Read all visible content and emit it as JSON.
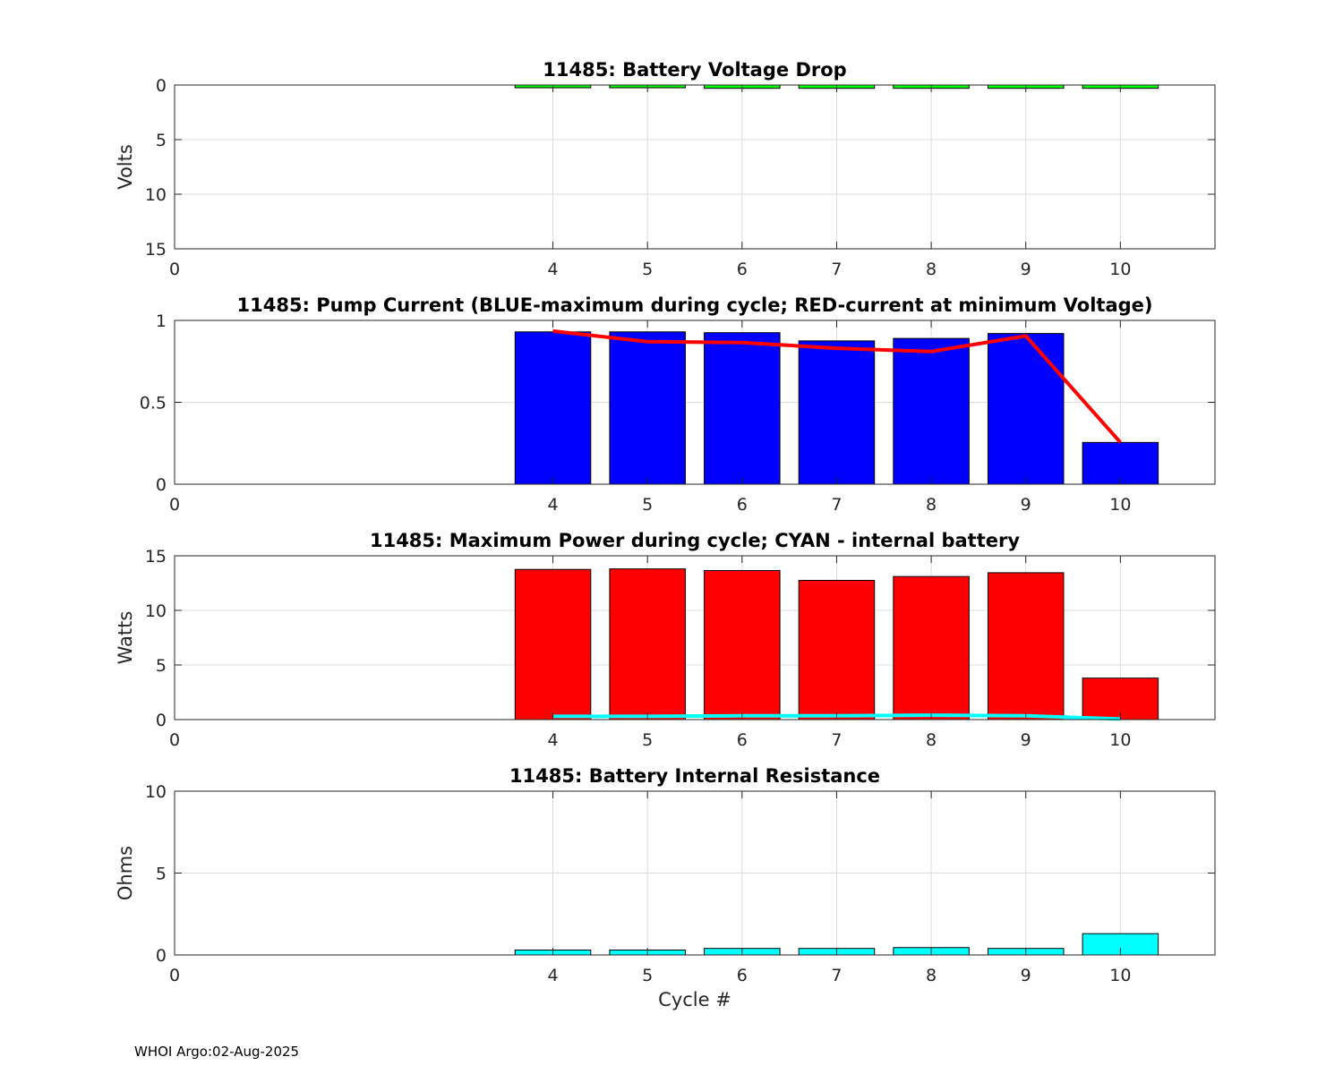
{
  "chart_data": [
    {
      "type": "bar",
      "title": "11485: Battery Voltage Drop",
      "xlabel": "",
      "ylabel": "Volts",
      "y_reversed": true,
      "xlim": [
        0,
        11
      ],
      "ylim": [
        0,
        15
      ],
      "xticks": [
        0,
        4,
        5,
        6,
        7,
        8,
        9,
        10
      ],
      "yticks": [
        0,
        5,
        10,
        15
      ],
      "grid": true,
      "series": [
        {
          "name": "Voltage Drop",
          "color": "#00ff00",
          "x": [
            4,
            5,
            6,
            7,
            8,
            9,
            10
          ],
          "values": [
            0.25,
            0.25,
            0.3,
            0.3,
            0.3,
            0.3,
            0.3
          ]
        }
      ]
    },
    {
      "type": "bar",
      "title": "11485: Pump Current (BLUE-maximum during cycle; RED-current at minimum Voltage)",
      "xlabel": "",
      "ylabel": "",
      "xlim": [
        0,
        11
      ],
      "ylim": [
        0,
        1
      ],
      "xticks": [
        0,
        4,
        5,
        6,
        7,
        8,
        9,
        10
      ],
      "yticks": [
        0,
        0.5,
        1
      ],
      "grid": true,
      "series": [
        {
          "name": "Maximum during cycle",
          "color": "#0000ff",
          "x": [
            4,
            5,
            6,
            7,
            8,
            9,
            10
          ],
          "values": [
            0.93,
            0.93,
            0.925,
            0.875,
            0.89,
            0.92,
            0.255
          ]
        }
      ],
      "lines": [
        {
          "name": "Current at minimum Voltage",
          "color": "#ff0000",
          "x": [
            4,
            5,
            6,
            7,
            8,
            9,
            10
          ],
          "values": [
            0.935,
            0.87,
            0.865,
            0.83,
            0.81,
            0.905,
            0.255
          ]
        }
      ]
    },
    {
      "type": "bar",
      "title": "11485: Maximum Power during cycle; CYAN - internal battery",
      "xlabel": "",
      "ylabel": "Watts",
      "xlim": [
        0,
        11
      ],
      "ylim": [
        0,
        15
      ],
      "xticks": [
        0,
        4,
        5,
        6,
        7,
        8,
        9,
        10
      ],
      "yticks": [
        0,
        5,
        10,
        15
      ],
      "grid": true,
      "series": [
        {
          "name": "Maximum Power",
          "color": "#ff0000",
          "x": [
            4,
            5,
            6,
            7,
            8,
            9,
            10
          ],
          "values": [
            13.75,
            13.8,
            13.65,
            12.75,
            13.1,
            13.45,
            3.8
          ]
        }
      ],
      "lines": [
        {
          "name": "Internal battery",
          "color": "#00ffff",
          "x": [
            4,
            5,
            6,
            7,
            8,
            9,
            10
          ],
          "values": [
            0.3,
            0.3,
            0.35,
            0.35,
            0.4,
            0.35,
            0.05
          ]
        }
      ]
    },
    {
      "type": "bar",
      "title": "11485: Battery Internal Resistance",
      "xlabel": "Cycle #",
      "ylabel": "Ohms",
      "xlim": [
        0,
        11
      ],
      "ylim": [
        0,
        10
      ],
      "xticks": [
        0,
        4,
        5,
        6,
        7,
        8,
        9,
        10
      ],
      "yticks": [
        0,
        5,
        10
      ],
      "grid": true,
      "series": [
        {
          "name": "Internal Resistance",
          "color": "#00ffff",
          "x": [
            4,
            5,
            6,
            7,
            8,
            9,
            10
          ],
          "values": [
            0.3,
            0.3,
            0.4,
            0.4,
            0.45,
            0.4,
            1.3
          ]
        }
      ]
    }
  ],
  "footer": {
    "text": "WHOI Argo:02-Aug-2025"
  }
}
